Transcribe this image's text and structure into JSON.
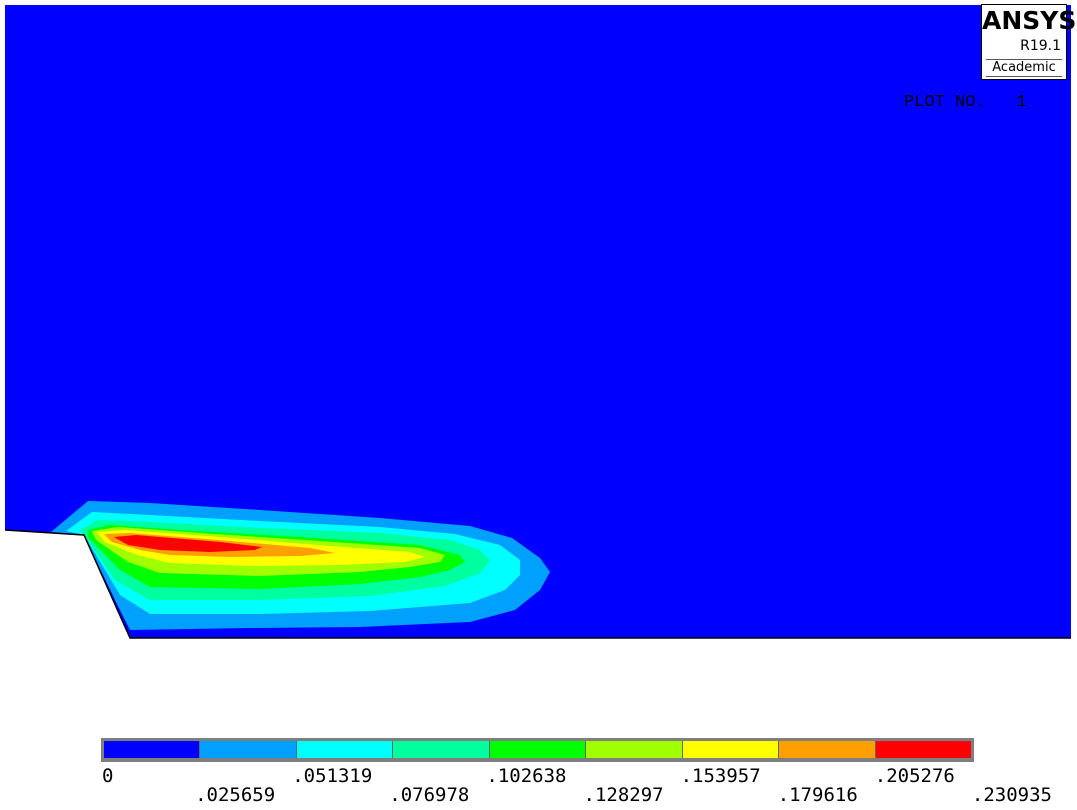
{
  "logo": {
    "name": "ANSYS",
    "release": "R19.1",
    "edition": "Academic"
  },
  "plot_label": "PLOT NO.   1",
  "colors": {
    "background": "#ffffff",
    "model_fill": "#0000ff",
    "bands": [
      "#0000ff",
      "#00a0ff",
      "#00ffff",
      "#00ff9f",
      "#00ff00",
      "#a0ff00",
      "#ffff00",
      "#ff9f00",
      "#ff0000"
    ]
  },
  "legend": {
    "values": [
      "0",
      ".025659",
      ".051319",
      ".076978",
      ".102638",
      ".128297",
      ".153957",
      ".179616",
      ".205276",
      ".230935"
    ]
  }
}
